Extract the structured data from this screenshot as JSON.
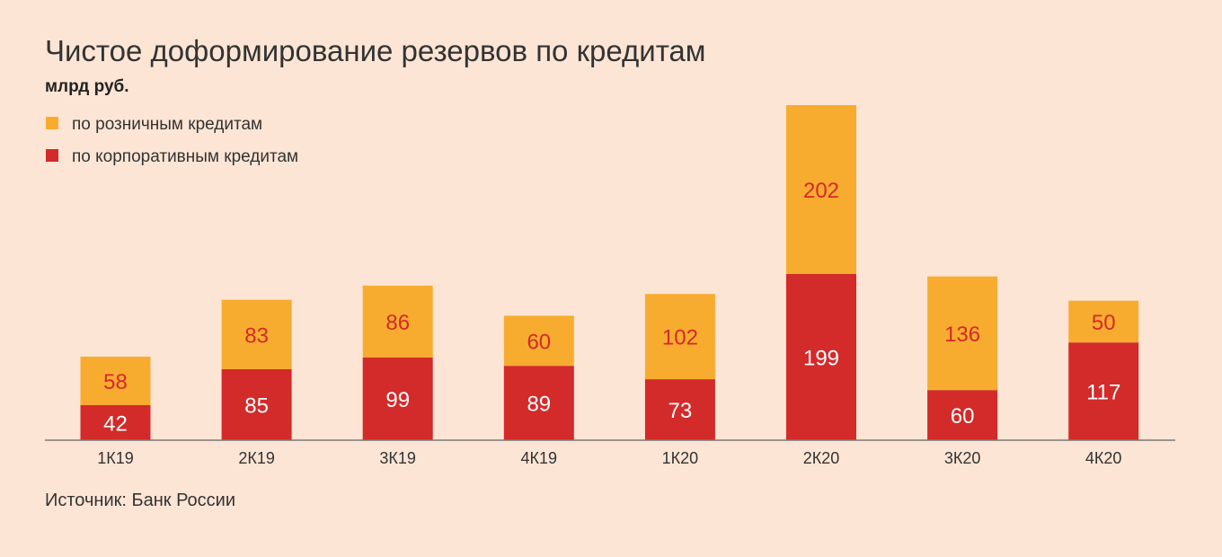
{
  "chart_data": {
    "type": "bar",
    "stacked": true,
    "title": "Чистое доформирование резервов по кредитам",
    "subtitle": "млрд руб.",
    "categories": [
      "1К19",
      "2К19",
      "3К19",
      "4К19",
      "1К20",
      "2К20",
      "3К20",
      "4К20"
    ],
    "series": [
      {
        "name": "по корпоративным кредитам",
        "color": "#d32a2a",
        "label_color": "#ffffff",
        "values": [
          42,
          85,
          99,
          89,
          73,
          199,
          60,
          117
        ]
      },
      {
        "name": "по розничным кредитам",
        "color": "#f8ac2f",
        "label_color": "#d32a2a",
        "values": [
          58,
          83,
          86,
          60,
          102,
          202,
          136,
          50
        ]
      }
    ],
    "legend": {
      "placement": "top-left",
      "order": [
        "по розничным кредитам",
        "по корпоративным кредитам"
      ]
    },
    "ylim": [
      0,
      401
    ],
    "grid": false,
    "source": "Источник: Банк России"
  },
  "colors": {
    "background": "#fde5d5",
    "text": "#333333",
    "axis": "#7a7a7a"
  }
}
